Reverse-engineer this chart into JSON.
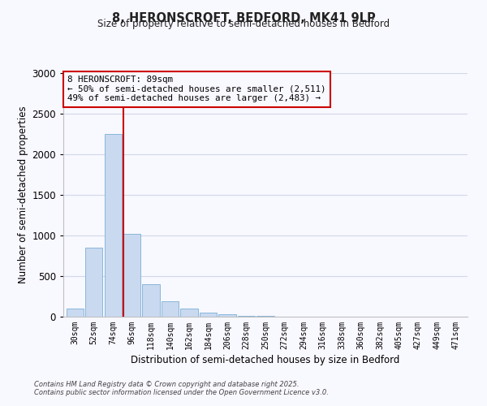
{
  "title": "8, HERONSCROFT, BEDFORD, MK41 9LP",
  "subtitle": "Size of property relative to semi-detached houses in Bedford",
  "xlabel": "Distribution of semi-detached houses by size in Bedford",
  "ylabel": "Number of semi-detached properties",
  "bar_labels": [
    "30sqm",
    "52sqm",
    "74sqm",
    "96sqm",
    "118sqm",
    "140sqm",
    "162sqm",
    "184sqm",
    "206sqm",
    "228sqm",
    "250sqm",
    "272sqm",
    "294sqm",
    "316sqm",
    "338sqm",
    "360sqm",
    "382sqm",
    "405sqm",
    "427sqm",
    "449sqm",
    "471sqm"
  ],
  "bar_values": [
    100,
    850,
    2250,
    1020,
    400,
    195,
    100,
    55,
    30,
    10,
    8,
    5,
    3,
    2,
    1,
    1,
    0.5,
    0.5,
    0,
    0,
    0
  ],
  "bar_color": "#c9d9f0",
  "bar_edge_color": "#7bafd4",
  "vline_color": "#cc0000",
  "annotation_title": "8 HERONSCROFT: 89sqm",
  "annotation_line1": "← 50% of semi-detached houses are smaller (2,511)",
  "annotation_line2": "49% of semi-detached houses are larger (2,483) →",
  "annotation_box_color": "#cc0000",
  "ylim": [
    0,
    3000
  ],
  "yticks": [
    0,
    500,
    1000,
    1500,
    2000,
    2500,
    3000
  ],
  "bg_color": "#f8f8ff",
  "grid_color": "#d0d8e8",
  "footer_line1": "Contains HM Land Registry data © Crown copyright and database right 2025.",
  "footer_line2": "Contains public sector information licensed under the Open Government Licence v3.0."
}
